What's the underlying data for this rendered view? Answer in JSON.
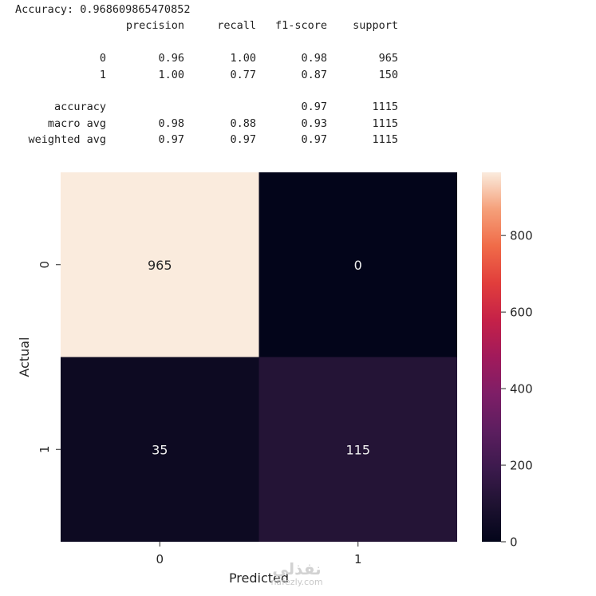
{
  "report": {
    "accuracy_line": "Accuracy: 0.968609865470852",
    "headers": [
      "precision",
      "recall",
      "f1-score",
      "support"
    ],
    "rows": [
      {
        "label": "0",
        "precision": "0.96",
        "recall": "1.00",
        "f1": "0.98",
        "support": "965"
      },
      {
        "label": "1",
        "precision": "1.00",
        "recall": "0.77",
        "f1": "0.87",
        "support": "150"
      },
      {
        "label": "accuracy",
        "precision": "",
        "recall": "",
        "f1": "0.97",
        "support": "1115"
      },
      {
        "label": "macro avg",
        "precision": "0.98",
        "recall": "0.88",
        "f1": "0.93",
        "support": "1115"
      },
      {
        "label": "weighted avg",
        "precision": "0.97",
        "recall": "0.97",
        "f1": "0.97",
        "support": "1115"
      }
    ]
  },
  "chart_data": {
    "type": "heatmap",
    "title": "",
    "xlabel": "Predicted",
    "ylabel": "Actual",
    "x_categories": [
      "0",
      "1"
    ],
    "y_categories": [
      "0",
      "1"
    ],
    "values": [
      [
        965,
        0
      ],
      [
        35,
        115
      ]
    ],
    "colormap": "rocket",
    "colorbar": {
      "min": 0,
      "max": 965,
      "ticks": [
        0,
        200,
        400,
        600,
        800
      ]
    },
    "grid": false,
    "legend": "colorbar-right"
  },
  "watermark": {
    "main": "نفذلي",
    "sub": "nafezly.com"
  }
}
